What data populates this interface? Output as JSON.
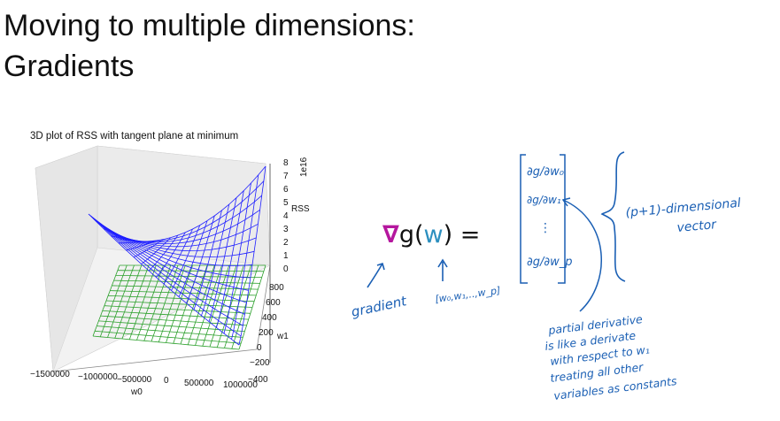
{
  "slide": {
    "title_line1": "Moving to multiple dimensions:",
    "title_line2": "Gradients"
  },
  "plot": {
    "title": "3D plot of RSS with tangent plane at minimum",
    "z_axis_label": "RSS",
    "z_scale_label": "1e16",
    "z_ticks": [
      "8",
      "7",
      "6",
      "5",
      "4",
      "3",
      "2",
      "1",
      "0"
    ],
    "w1_axis_label": "w1",
    "w1_ticks": [
      "800",
      "600",
      "400",
      "200",
      "0",
      "−200",
      "−400"
    ],
    "w0_axis_label": "w0",
    "w0_ticks": [
      "−1500000",
      "−1000000",
      "−500000",
      "0",
      "500000",
      "1000000"
    ],
    "surface_color": "#1f1fff",
    "plane_color": "#2ca02c"
  },
  "equation": {
    "nabla": "∇",
    "g_open": "g(",
    "w": "w",
    "close_eq": ") ="
  },
  "annotations": {
    "gradient": "gradient",
    "w_vector": "[w₀,w₁,..,w_p]",
    "partials": [
      "∂g/∂w₀",
      "∂g/∂w₁",
      "⋮",
      "∂g/∂w_p"
    ],
    "dim_vector_line1": "(p+1)-dimensional",
    "dim_vector_line2": "vector",
    "note_lines": [
      "partial derivative",
      "is like a derivate",
      "with respect to w₁",
      "treating all other",
      "variables as constants"
    ],
    "ink_color": "#1a5fb4"
  }
}
